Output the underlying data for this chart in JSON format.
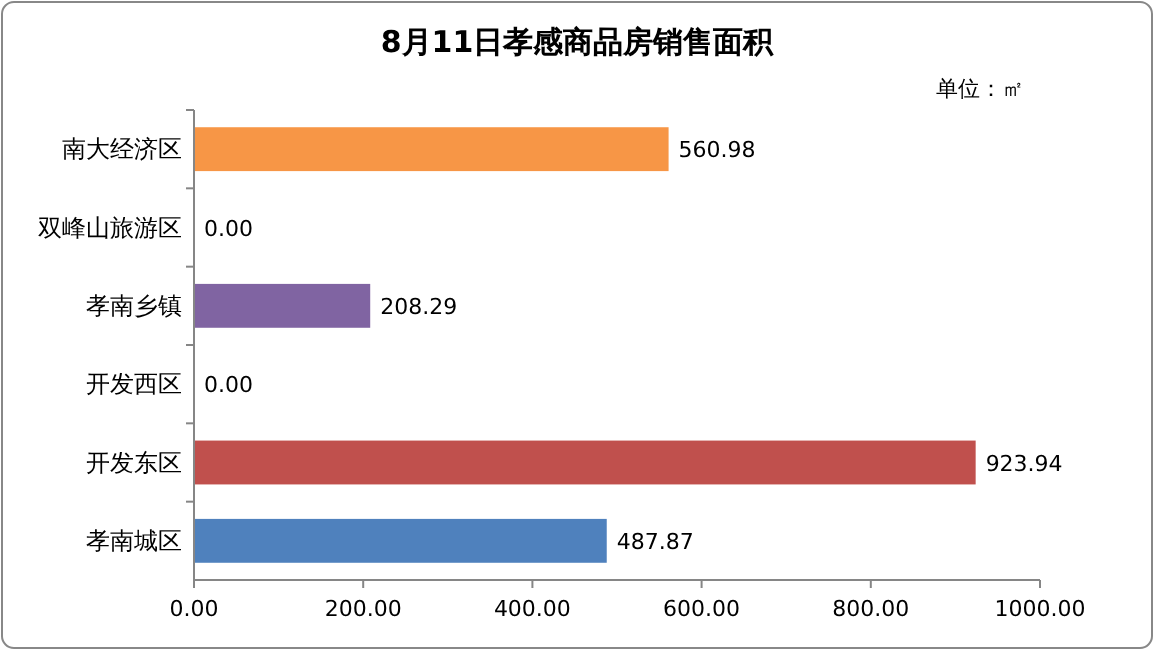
{
  "chart_data": {
    "type": "bar",
    "orientation": "horizontal",
    "title": "8月11日孝感商品房销售面积",
    "annotations": [
      "单位：㎡"
    ],
    "categories": [
      "南大经济区",
      "双峰山旅游区",
      "孝南乡镇",
      "开发西区",
      "开发东区",
      "孝南城区"
    ],
    "values": [
      560.98,
      0,
      208.29,
      0,
      923.94,
      487.87
    ],
    "colors": [
      "#f79646",
      "#4bacc6",
      "#8064a2",
      "#9bbb59",
      "#c0504d",
      "#4f81bd"
    ],
    "value_labels": [
      "560.98",
      "0.00",
      "208.29",
      "0.00",
      "923.94",
      "487.87"
    ],
    "xlim": [
      0,
      1000
    ],
    "xticks": [
      {
        "value": 0,
        "label": "0.00"
      },
      {
        "value": 200,
        "label": "200.00"
      },
      {
        "value": 400,
        "label": "400.00"
      },
      {
        "value": 600,
        "label": "600.00"
      },
      {
        "value": 800,
        "label": "800.00"
      },
      {
        "value": 1000,
        "label": "1000.00"
      }
    ]
  }
}
